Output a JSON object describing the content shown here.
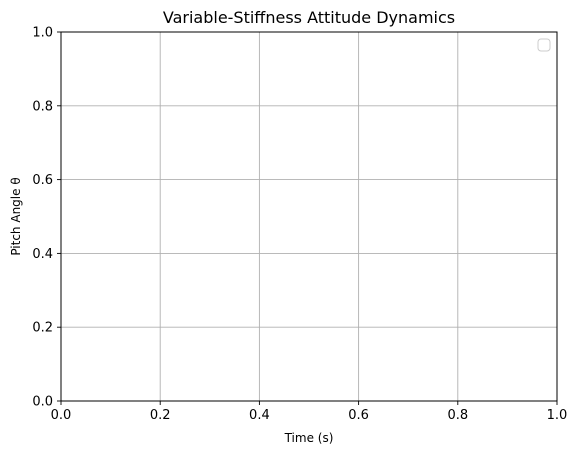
{
  "chart_data": {
    "type": "line",
    "title": "Variable-Stiffness Attitude Dynamics",
    "xlabel": "Time (s)",
    "ylabel": "Pitch Angle θ",
    "xlim": [
      0.0,
      1.0
    ],
    "ylim": [
      0.0,
      1.0
    ],
    "xticks": [
      0.0,
      0.2,
      0.4,
      0.6,
      0.8,
      1.0
    ],
    "yticks": [
      0.0,
      0.2,
      0.4,
      0.6,
      0.8,
      1.0
    ],
    "xtick_labels": [
      "0.0",
      "0.2",
      "0.4",
      "0.6",
      "0.8",
      "1.0"
    ],
    "ytick_labels": [
      "0.0",
      "0.2",
      "0.4",
      "0.6",
      "0.8",
      "1.0"
    ],
    "series": [],
    "grid": true,
    "legend": {
      "placement": "top-right",
      "entries": []
    },
    "colors": {
      "grid": "#b0b0b0",
      "axes": "#000000",
      "legend_border": "#cccccc",
      "background": "#ffffff"
    }
  }
}
